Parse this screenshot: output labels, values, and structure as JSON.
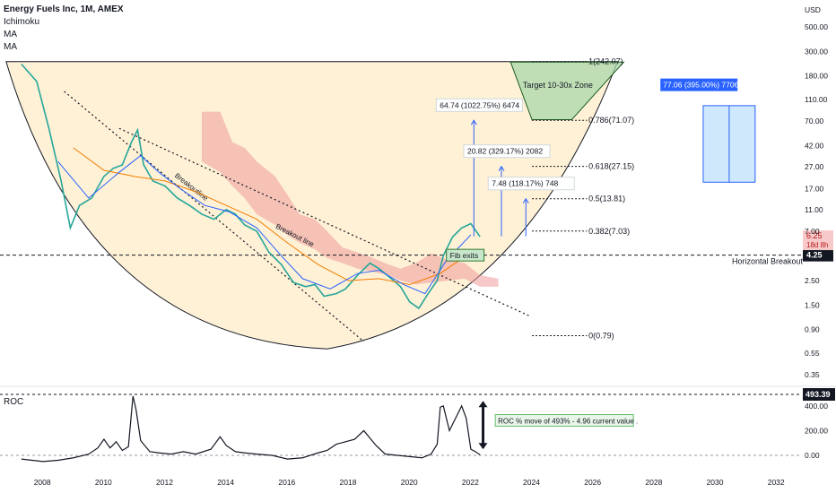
{
  "header": {
    "title": "Energy Fuels Inc, 1M, AMEX",
    "indicators": [
      "Ichimoku",
      "MA",
      "MA"
    ],
    "currency": "USD"
  },
  "chart_data": {
    "type": "line",
    "main_panel": {
      "y_scale": "log",
      "y_ticks": [
        500,
        300,
        180,
        110,
        70,
        42,
        27,
        17,
        11,
        7,
        4.25,
        2.5,
        1.5,
        0.9,
        0.55,
        0.35
      ],
      "y_tick_labels": [
        "500.00",
        "300.00",
        "180.00",
        "110.00",
        "70.00",
        "42.00",
        "27.00",
        "17.00",
        "11.00",
        "7.00",
        "4.25",
        "2.50",
        "1.50",
        "0.90",
        "0.55",
        "0.35"
      ],
      "current_price": {
        "label": "6.25",
        "countdown": "18d 8h"
      },
      "horizontal_line": {
        "value": 4.25,
        "label": "4.25",
        "name": "Horizontal Breakout"
      },
      "fib_levels": [
        {
          "value": 242.07,
          "label": "1(242.07)"
        },
        {
          "value": 71.07,
          "label": "0.786(71.07)"
        },
        {
          "value": 27.15,
          "label": "0.618(27.15)"
        },
        {
          "value": 13.81,
          "label": "0.5(13.81)"
        },
        {
          "value": 7.03,
          "label": "0.382(7.03)"
        },
        {
          "value": 0.79,
          "label": "0(0.79)"
        }
      ],
      "annotations": {
        "target_zone": "Target 10-30x  Zone",
        "breakout_line_1": "Breakoutline",
        "breakout_line_2": "Breakout line",
        "fib_exits": "Fib exits"
      },
      "projections": [
        {
          "label": "64.74 (1022.75%) 6474",
          "from": 6.3,
          "to": 71.0
        },
        {
          "label": "20.82 (329.17%) 2082",
          "from": 6.3,
          "to": 27.1
        },
        {
          "label": "7.48 (118.17%) 748",
          "from": 6.3,
          "to": 13.8
        }
      ],
      "measure_box": {
        "label": "77.06 (395.00%) 7706",
        "from": 19.5,
        "to": 96.5
      },
      "series": [
        {
          "name": "price",
          "color": "#26a69a",
          "x": [
            2007.3,
            2007.8,
            2008.2,
            2008.6,
            2008.9,
            2009.2,
            2009.6,
            2010.0,
            2010.3,
            2010.6,
            2010.9,
            2011.1,
            2011.3,
            2011.6,
            2012.0,
            2012.4,
            2012.8,
            2013.2,
            2013.6,
            2014.0,
            2014.3,
            2014.6,
            2015.0,
            2015.4,
            2015.8,
            2016.2,
            2016.6,
            2016.9,
            2017.2,
            2017.6,
            2017.9,
            2018.3,
            2018.7,
            2019.0,
            2019.4,
            2019.7,
            2020.0,
            2020.3,
            2020.6,
            2020.9,
            2021.1,
            2021.4,
            2021.7,
            2022.0,
            2022.3
          ],
          "values": [
            230,
            160,
            60,
            20,
            7.5,
            12,
            14,
            22,
            26,
            28,
            45,
            58,
            28,
            20,
            18,
            14,
            12,
            10,
            9,
            11,
            10,
            8,
            7,
            4.5,
            3.5,
            2.4,
            2.2,
            2.3,
            1.8,
            1.9,
            2.1,
            2.8,
            3.6,
            3.2,
            2.6,
            2.2,
            1.6,
            1.4,
            1.9,
            2.5,
            4.2,
            6.2,
            7.5,
            8.2,
            6.25
          ]
        },
        {
          "name": "MA",
          "color": "#f57c00",
          "x": [
            2009.0,
            2010.0,
            2011.0,
            2012.0,
            2013.0,
            2014.0,
            2015.0,
            2016.0,
            2017.0,
            2018.0,
            2019.0,
            2020.0,
            2021.0,
            2022.0
          ],
          "values": [
            40,
            25,
            22,
            20,
            16,
            12,
            9,
            5.5,
            3.5,
            2.5,
            2.6,
            2.3,
            2.9,
            4.5
          ]
        },
        {
          "name": "MA",
          "color": "#2962ff",
          "x": [
            2008.5,
            2009.5,
            2010.5,
            2011.2,
            2011.8,
            2012.5,
            2013.3,
            2014.1,
            2015.0,
            2015.8,
            2016.5,
            2017.4,
            2018.3,
            2019.0,
            2019.8,
            2020.5,
            2021.2,
            2022.0
          ],
          "values": [
            30,
            14,
            24,
            34,
            24,
            17,
            12,
            10.5,
            7.5,
            4.2,
            2.6,
            2.1,
            2.9,
            3.1,
            2.3,
            1.9,
            3.8,
            6.5
          ]
        }
      ]
    },
    "roc_panel": {
      "title": "ROC",
      "y_ticks": [
        400,
        200,
        0
      ],
      "y_tick_labels": [
        "400.00",
        "200.00",
        "0.00"
      ],
      "max_label": "493.39",
      "annotation": "ROC % move of 493% - 4.96 current value .",
      "series": {
        "x": [
          2007.3,
          2008.0,
          2008.5,
          2009.0,
          2009.5,
          2009.8,
          2010.0,
          2010.2,
          2010.4,
          2010.6,
          2010.8,
          2010.95,
          2011.05,
          2011.2,
          2011.5,
          2011.8,
          2012.2,
          2012.6,
          2013.0,
          2013.5,
          2013.8,
          2014.0,
          2014.3,
          2014.6,
          2015.0,
          2015.5,
          2016.0,
          2016.5,
          2017.0,
          2017.3,
          2017.6,
          2017.9,
          2018.2,
          2018.5,
          2018.7,
          2018.9,
          2019.2,
          2019.6,
          2020.0,
          2020.4,
          2020.7,
          2020.9,
          2021.0,
          2021.1,
          2021.3,
          2021.5,
          2021.7,
          2021.85,
          2022.0,
          2022.15,
          2022.3
        ],
        "values": [
          -30,
          -50,
          -40,
          -20,
          10,
          60,
          130,
          60,
          110,
          40,
          70,
          480,
          370,
          120,
          30,
          20,
          10,
          30,
          10,
          50,
          150,
          80,
          30,
          20,
          10,
          0,
          -30,
          -20,
          20,
          40,
          90,
          110,
          130,
          200,
          140,
          80,
          10,
          0,
          -10,
          -20,
          10,
          90,
          390,
          400,
          200,
          300,
          400,
          300,
          50,
          30,
          5
        ]
      }
    },
    "x_axis": {
      "ticks": [
        2008,
        2010,
        2012,
        2014,
        2016,
        2018,
        2020,
        2022,
        2024,
        2026,
        2028,
        2030,
        2032
      ],
      "range": [
        2006.6,
        2032.8
      ]
    },
    "grid": false
  }
}
